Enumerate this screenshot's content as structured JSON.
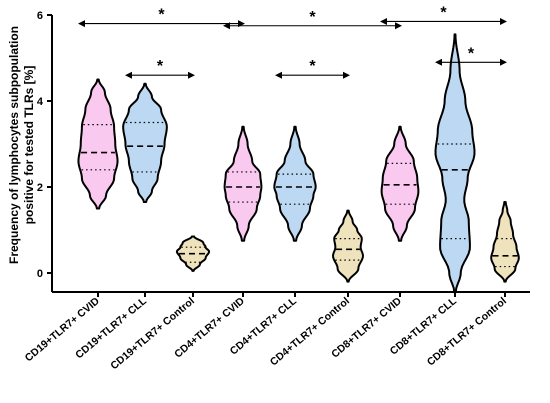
{
  "chart_data": {
    "type": "violin",
    "ylabel_line1": "Frequency of lymphocytes subpopulation",
    "ylabel_line2": "positive for tested TLRs [%]",
    "ylim": [
      0,
      6
    ],
    "yticks": [
      "0",
      "2",
      "4",
      "6"
    ],
    "colors": {
      "CVID": "#f9c9f0",
      "CLL": "#bcd8f2",
      "Control": "#efe3bd"
    },
    "categories": [
      "CD19+TLR7+ CVID",
      "CD19+TLR7+ CLL",
      "CD19+TLR7+ Control",
      "CD4+TLR7+ CVID",
      "CD4+TLR7+ CLL",
      "CD4+TLR7+ Control",
      "CD8+TLR7+ CVID",
      "CD8+TLR7+ CLL",
      "CD8+TLR7+ Control"
    ],
    "violins": [
      {
        "group": "CVID",
        "min": 1.5,
        "max": 4.5,
        "q1": 2.4,
        "median": 2.8,
        "q3": 3.45,
        "profile": [
          [
            1.5,
            0.05
          ],
          [
            1.8,
            0.35
          ],
          [
            2.2,
            0.7
          ],
          [
            2.6,
            0.85
          ],
          [
            3.0,
            0.75
          ],
          [
            3.4,
            0.7
          ],
          [
            3.8,
            0.55
          ],
          [
            4.2,
            0.3
          ],
          [
            4.5,
            0.03
          ]
        ]
      },
      {
        "group": "CLL",
        "min": 1.65,
        "max": 4.4,
        "q1": 2.35,
        "median": 2.95,
        "q3": 3.5,
        "profile": [
          [
            1.65,
            0.05
          ],
          [
            1.9,
            0.3
          ],
          [
            2.2,
            0.55
          ],
          [
            2.6,
            0.7
          ],
          [
            3.0,
            0.85
          ],
          [
            3.4,
            0.95
          ],
          [
            3.8,
            0.7
          ],
          [
            4.1,
            0.3
          ],
          [
            4.4,
            0.03
          ]
        ]
      },
      {
        "group": "Control",
        "min": 0.05,
        "max": 0.85,
        "q1": 0.25,
        "median": 0.45,
        "q3": 0.6,
        "profile": [
          [
            0.05,
            0.03
          ],
          [
            0.2,
            0.3
          ],
          [
            0.35,
            0.55
          ],
          [
            0.5,
            0.7
          ],
          [
            0.6,
            0.55
          ],
          [
            0.7,
            0.45
          ],
          [
            0.85,
            0.05
          ]
        ]
      },
      {
        "group": "CVID",
        "min": 0.75,
        "max": 3.4,
        "q1": 1.65,
        "median": 2.0,
        "q3": 2.35,
        "profile": [
          [
            0.75,
            0.05
          ],
          [
            1.1,
            0.25
          ],
          [
            1.5,
            0.6
          ],
          [
            1.8,
            0.75
          ],
          [
            2.0,
            0.8
          ],
          [
            2.3,
            0.75
          ],
          [
            2.6,
            0.4
          ],
          [
            3.0,
            0.2
          ],
          [
            3.4,
            0.03
          ]
        ]
      },
      {
        "group": "CLL",
        "min": 0.75,
        "max": 3.4,
        "q1": 1.6,
        "median": 2.0,
        "q3": 2.3,
        "profile": [
          [
            0.75,
            0.05
          ],
          [
            1.1,
            0.3
          ],
          [
            1.5,
            0.65
          ],
          [
            1.8,
            0.8
          ],
          [
            2.0,
            0.9
          ],
          [
            2.3,
            0.8
          ],
          [
            2.6,
            0.45
          ],
          [
            3.0,
            0.2
          ],
          [
            3.4,
            0.03
          ]
        ]
      },
      {
        "group": "Control",
        "min": -0.2,
        "max": 1.45,
        "q1": 0.3,
        "median": 0.55,
        "q3": 0.8,
        "profile": [
          [
            -0.2,
            0.03
          ],
          [
            0.1,
            0.45
          ],
          [
            0.4,
            0.65
          ],
          [
            0.6,
            0.55
          ],
          [
            0.8,
            0.6
          ],
          [
            1.0,
            0.4
          ],
          [
            1.2,
            0.2
          ],
          [
            1.45,
            0.03
          ]
        ]
      },
      {
        "group": "CVID",
        "min": 0.75,
        "max": 3.4,
        "q1": 1.6,
        "median": 2.05,
        "q3": 2.55,
        "profile": [
          [
            0.75,
            0.05
          ],
          [
            1.1,
            0.3
          ],
          [
            1.5,
            0.65
          ],
          [
            1.9,
            0.8
          ],
          [
            2.2,
            0.75
          ],
          [
            2.6,
            0.6
          ],
          [
            3.0,
            0.25
          ],
          [
            3.4,
            0.03
          ]
        ]
      },
      {
        "group": "CLL",
        "min": -0.45,
        "max": 5.55,
        "q1": 0.8,
        "median": 2.4,
        "q3": 3.0,
        "profile": [
          [
            -0.45,
            0.03
          ],
          [
            0.0,
            0.25
          ],
          [
            0.6,
            0.65
          ],
          [
            1.2,
            0.6
          ],
          [
            1.7,
            0.4
          ],
          [
            2.2,
            0.55
          ],
          [
            2.8,
            0.85
          ],
          [
            3.3,
            0.75
          ],
          [
            4.0,
            0.45
          ],
          [
            4.7,
            0.2
          ],
          [
            5.55,
            0.02
          ]
        ]
      },
      {
        "group": "Control",
        "min": -0.2,
        "max": 1.65,
        "q1": 0.15,
        "median": 0.4,
        "q3": 0.8,
        "profile": [
          [
            -0.2,
            0.03
          ],
          [
            0.1,
            0.45
          ],
          [
            0.35,
            0.6
          ],
          [
            0.6,
            0.5
          ],
          [
            0.9,
            0.35
          ],
          [
            1.2,
            0.25
          ],
          [
            1.45,
            0.1
          ],
          [
            1.65,
            0.03
          ]
        ]
      }
    ],
    "significance": [
      {
        "from": 0,
        "to": 3,
        "y": 5.8,
        "label": "*"
      },
      {
        "from": 1,
        "to": 2,
        "y": 4.6,
        "label": "*"
      },
      {
        "from": 3,
        "to": 6,
        "y": 5.75,
        "label": "*"
      },
      {
        "from": 4,
        "to": 5,
        "y": 4.6,
        "label": "*"
      },
      {
        "from": 6,
        "to": 8,
        "y": 5.85,
        "label": "*"
      },
      {
        "from": 7,
        "to": 8,
        "y": 4.9,
        "label": "*"
      }
    ]
  }
}
